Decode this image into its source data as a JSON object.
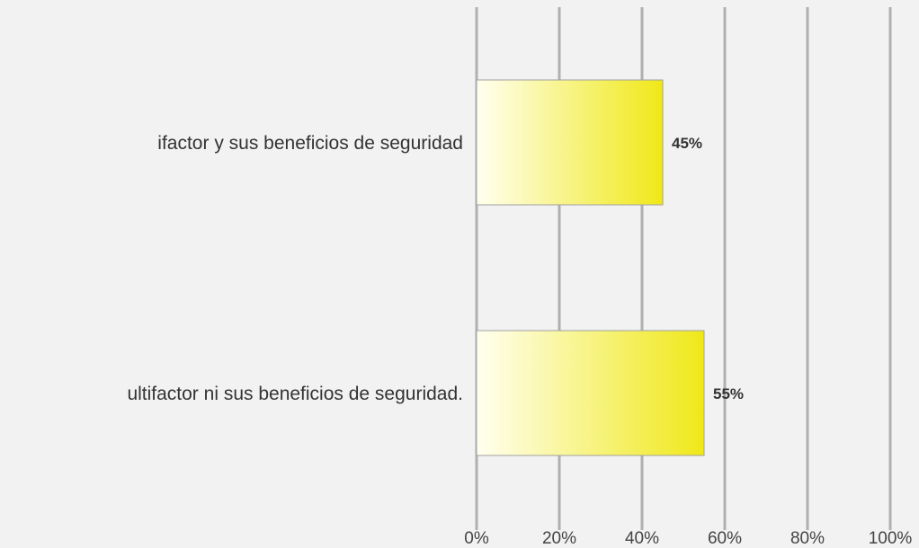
{
  "chart_data": {
    "type": "barh",
    "categories": [
      "ifactor y sus beneficios de seguridad",
      "ultifactor ni sus beneficios de seguridad."
    ],
    "values": [
      45,
      55
    ],
    "value_labels": [
      "45%",
      "55%"
    ],
    "color": "#f0e818",
    "xlim": [
      0,
      100
    ],
    "xticks": [
      {
        "value": 0,
        "label": "0%"
      },
      {
        "value": 20,
        "label": "20%"
      },
      {
        "value": 40,
        "label": "40%"
      },
      {
        "value": 60,
        "label": "60%"
      },
      {
        "value": 80,
        "label": "80%"
      },
      {
        "value": 100,
        "label": "100%"
      }
    ],
    "grid": true
  }
}
